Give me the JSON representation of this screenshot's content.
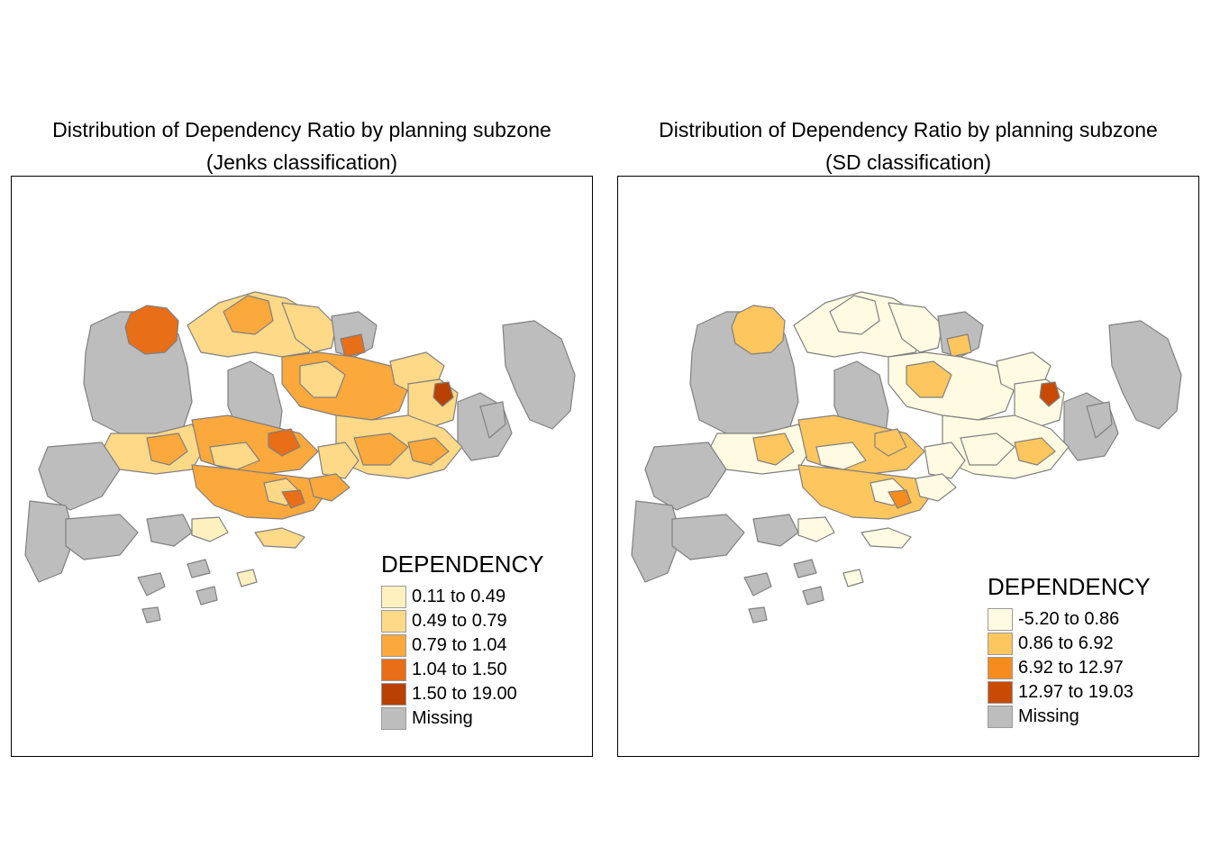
{
  "maps": [
    {
      "title_line1": "Distribution of Dependency Ratio by planning subzone",
      "title_line2": "(Jenks classification)",
      "legend_title": "DEPENDENCY",
      "classes": [
        {
          "label": "0.11 to 0.49",
          "color": "#FEF0BF"
        },
        {
          "label": "0.49 to 0.79",
          "color": "#FDD988"
        },
        {
          "label": "0.79 to 1.04",
          "color": "#FBA83C"
        },
        {
          "label": "1.04 to 1.50",
          "color": "#E86E18"
        },
        {
          "label": "1.50 to 19.00",
          "color": "#B84103"
        },
        {
          "label": "Missing",
          "color": "#BDBDBD"
        }
      ]
    },
    {
      "title_line1": "Distribution of Dependency Ratio by planning subzone",
      "title_line2": "(SD classification)",
      "legend_title": "DEPENDENCY",
      "classes": [
        {
          "label": "-5.20 to 0.86",
          "color": "#FFFBE2"
        },
        {
          "label": "0.86 to 6.92",
          "color": "#FDC65E"
        },
        {
          "label": "6.92 to 12.97",
          "color": "#F68B1E"
        },
        {
          "label": "12.97 to 19.03",
          "color": "#C94A04"
        },
        {
          "label": "Missing",
          "color": "#BDBDBD"
        }
      ]
    }
  ]
}
